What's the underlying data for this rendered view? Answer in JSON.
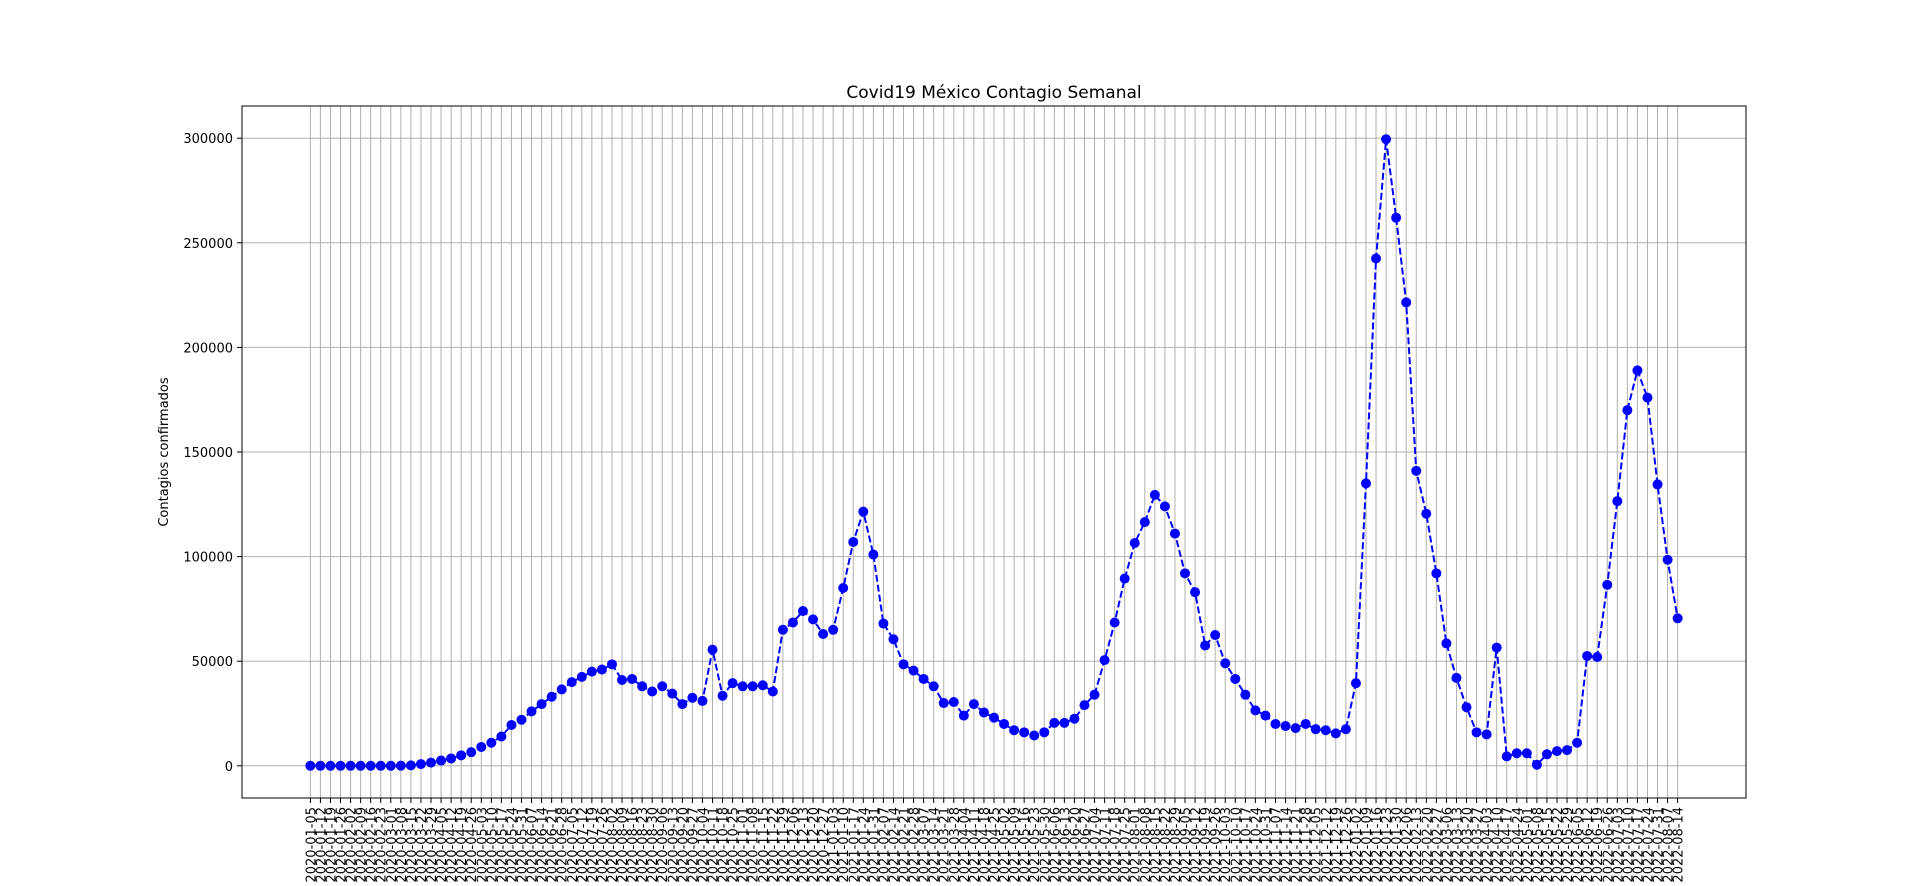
{
  "chart_data": {
    "type": "line",
    "title": "Covid19 México Contagio Semanal",
    "ylabel": "Contagios confirmados",
    "categories": [
      "2020-01-05",
      "2020-01-12",
      "2020-01-19",
      "2020-01-26",
      "2020-02-02",
      "2020-02-09",
      "2020-02-16",
      "2020-02-23",
      "2020-03-01",
      "2020-03-08",
      "2020-03-15",
      "2020-03-22",
      "2020-03-29",
      "2020-04-05",
      "2020-04-12",
      "2020-04-19",
      "2020-04-26",
      "2020-05-03",
      "2020-05-10",
      "2020-05-17",
      "2020-05-24",
      "2020-05-31",
      "2020-06-07",
      "2020-06-14",
      "2020-06-21",
      "2020-06-28",
      "2020-07-05",
      "2020-07-12",
      "2020-07-19",
      "2020-07-26",
      "2020-08-02",
      "2020-08-09",
      "2020-08-16",
      "2020-08-23",
      "2020-08-30",
      "2020-09-06",
      "2020-09-13",
      "2020-09-20",
      "2020-09-27",
      "2020-10-04",
      "2020-10-11",
      "2020-10-18",
      "2020-10-25",
      "2020-11-01",
      "2020-11-08",
      "2020-11-15",
      "2020-11-22",
      "2020-11-29",
      "2020-12-06",
      "2020-12-13",
      "2020-12-20",
      "2020-12-27",
      "2021-01-03",
      "2021-01-10",
      "2021-01-17",
      "2021-01-24",
      "2021-01-31",
      "2021-02-07",
      "2021-02-14",
      "2021-02-21",
      "2021-02-28",
      "2021-03-07",
      "2021-03-14",
      "2021-03-21",
      "2021-03-28",
      "2021-04-04",
      "2021-04-11",
      "2021-04-18",
      "2021-04-25",
      "2021-05-02",
      "2021-05-09",
      "2021-05-16",
      "2021-05-23",
      "2021-05-30",
      "2021-06-06",
      "2021-06-13",
      "2021-06-20",
      "2021-06-27",
      "2021-07-04",
      "2021-07-11",
      "2021-07-18",
      "2021-07-25",
      "2021-08-01",
      "2021-08-08",
      "2021-08-15",
      "2021-08-22",
      "2021-08-29",
      "2021-09-05",
      "2021-09-12",
      "2021-09-19",
      "2021-09-26",
      "2021-10-03",
      "2021-10-10",
      "2021-10-17",
      "2021-10-24",
      "2021-10-31",
      "2021-11-07",
      "2021-11-14",
      "2021-11-21",
      "2021-11-28",
      "2021-12-05",
      "2021-12-12",
      "2021-12-19",
      "2021-12-26",
      "2022-01-02",
      "2022-01-09",
      "2022-01-16",
      "2022-01-23",
      "2022-01-30",
      "2022-02-06",
      "2022-02-13",
      "2022-02-20",
      "2022-02-27",
      "2022-03-06",
      "2022-03-13",
      "2022-03-20",
      "2022-03-27",
      "2022-04-03",
      "2022-04-10",
      "2022-04-17",
      "2022-04-24",
      "2022-05-01",
      "2022-05-08",
      "2022-05-15",
      "2022-05-22",
      "2022-05-29",
      "2022-06-05",
      "2022-06-12",
      "2022-06-19",
      "2022-06-26",
      "2022-07-03",
      "2022-07-10",
      "2022-07-17",
      "2022-07-24",
      "2022-07-31",
      "2022-08-07",
      "2022-08-14"
    ],
    "values": [
      0,
      0,
      0,
      0,
      0,
      0,
      0,
      0,
      0,
      50,
      200,
      800,
      1500,
      2500,
      3500,
      5000,
      6500,
      9000,
      11000,
      14000,
      19500,
      22000,
      26000,
      29500,
      33000,
      36500,
      40000,
      42500,
      45000,
      46000,
      48500,
      41000,
      41500,
      38000,
      35500,
      38000,
      34500,
      29500,
      32500,
      31000,
      55500,
      33500,
      39500,
      38000,
      38000,
      38500,
      35500,
      65000,
      68500,
      74000,
      70000,
      63000,
      65000,
      85000,
      107000,
      121500,
      101000,
      68000,
      60500,
      48500,
      45500,
      41500,
      38000,
      30000,
      30500,
      24000,
      29500,
      25500,
      23000,
      20000,
      17000,
      16000,
      14500,
      16000,
      20500,
      20500,
      22500,
      29000,
      34000,
      50500,
      68500,
      89500,
      106500,
      116500,
      129500,
      124000,
      111000,
      92000,
      83000,
      57500,
      62500,
      49000,
      41500,
      34000,
      26500,
      24000,
      20000,
      19000,
      18000,
      20000,
      17500,
      17000,
      15500,
      17500,
      39500,
      135000,
      242500,
      299500,
      262000,
      221500,
      141000,
      120500,
      92000,
      58500,
      42000,
      28000,
      16000,
      15000,
      56500,
      4500,
      6000,
      6000,
      500,
      5500,
      7000,
      7500,
      11000,
      52500,
      52000,
      86500,
      126500,
      170000,
      189000,
      176000,
      134500,
      98500,
      70500
    ],
    "color": "#0000ff",
    "line_style": "dashed",
    "marker": "circle",
    "ylim": [
      -15400,
      315400
    ],
    "yticks": [
      0,
      50000,
      100000,
      150000,
      200000,
      250000,
      300000
    ],
    "grid": true
  }
}
